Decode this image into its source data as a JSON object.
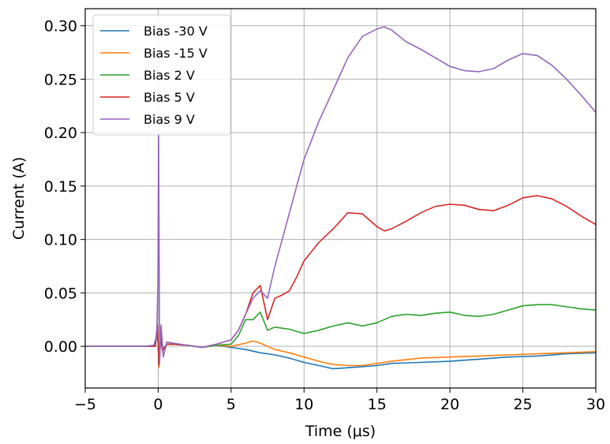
{
  "chart_data": {
    "type": "line",
    "xlabel": "Time (μs)",
    "ylabel": "Current (A)",
    "xlim": [
      -5,
      30
    ],
    "ylim": [
      -0.039,
      0.316
    ],
    "grid": true,
    "legend_position": "top-left",
    "xticks": [
      -5,
      0,
      5,
      10,
      15,
      20,
      25,
      30
    ],
    "xtick_labels": [
      "−5",
      "0",
      "5",
      "10",
      "15",
      "20",
      "25",
      "30"
    ],
    "yticks": [
      0.0,
      0.05,
      0.1,
      0.15,
      0.2,
      0.25,
      0.3
    ],
    "ytick_labels": [
      "0.00",
      "0.05",
      "0.10",
      "0.15",
      "0.20",
      "0.25",
      "0.30"
    ],
    "series": [
      {
        "name": "Bias -30 V",
        "color": "#1f77b4",
        "x": [
          -5,
          -4,
          -3,
          -2,
          -1,
          -0.2,
          -0.05,
          0.05,
          0.15,
          0.3,
          0.6,
          1,
          2,
          3,
          4,
          5,
          6,
          7,
          8,
          9,
          10,
          11,
          12,
          13,
          14,
          15,
          16,
          18,
          20,
          22,
          24,
          26,
          28,
          30
        ],
        "y": [
          0,
          0,
          0,
          0,
          0,
          0,
          0.015,
          -0.015,
          0.008,
          -0.003,
          0.002,
          0.002,
          0.001,
          -0.001,
          0.001,
          -0.001,
          -0.003,
          -0.006,
          -0.008,
          -0.011,
          -0.015,
          -0.018,
          -0.021,
          -0.02,
          -0.019,
          -0.018,
          -0.016,
          -0.015,
          -0.014,
          -0.012,
          -0.01,
          -0.009,
          -0.007,
          -0.006
        ]
      },
      {
        "name": "Bias -15 V",
        "color": "#ff7f0e",
        "x": [
          -5,
          -4,
          -3,
          -2,
          -1,
          -0.2,
          -0.05,
          0.05,
          0.15,
          0.3,
          0.6,
          1,
          2,
          3,
          4,
          5,
          6,
          6.5,
          7,
          8,
          9,
          10,
          11,
          12,
          13,
          14,
          15,
          16,
          18,
          20,
          22,
          24,
          26,
          28,
          30
        ],
        "y": [
          0,
          0,
          0,
          0,
          0,
          0,
          0.02,
          -0.02,
          0.01,
          -0.005,
          0.002,
          0.002,
          0.001,
          -0.001,
          0.001,
          0.0,
          0.003,
          0.005,
          0.003,
          -0.003,
          -0.006,
          -0.01,
          -0.014,
          -0.017,
          -0.018,
          -0.018,
          -0.016,
          -0.014,
          -0.011,
          -0.01,
          -0.009,
          -0.008,
          -0.007,
          -0.006,
          -0.005
        ]
      },
      {
        "name": "Bias 2 V",
        "color": "#2ca02c",
        "x": [
          -5,
          -4,
          -3,
          -2,
          -1,
          -0.2,
          -0.05,
          0.05,
          0.15,
          0.3,
          0.6,
          1,
          2,
          3,
          4,
          5,
          5.5,
          6,
          6.5,
          7,
          7.5,
          8,
          9,
          10,
          11,
          12,
          13,
          14,
          15,
          16,
          17,
          18,
          19,
          20,
          21,
          22,
          23,
          24,
          25,
          26,
          27,
          28,
          29,
          30
        ],
        "y": [
          0,
          0,
          0,
          0,
          0,
          0,
          0.018,
          -0.018,
          0.009,
          -0.004,
          0.002,
          0.002,
          0.001,
          -0.001,
          0.001,
          0.002,
          0.01,
          0.025,
          0.025,
          0.032,
          0.015,
          0.018,
          0.016,
          0.012,
          0.015,
          0.019,
          0.022,
          0.019,
          0.022,
          0.028,
          0.03,
          0.029,
          0.031,
          0.032,
          0.029,
          0.028,
          0.03,
          0.034,
          0.038,
          0.039,
          0.039,
          0.037,
          0.035,
          0.034
        ]
      },
      {
        "name": "Bias 5 V",
        "color": "#d62728",
        "x": [
          -5,
          -4,
          -3,
          -2,
          -1,
          -0.2,
          -0.05,
          0.05,
          0.15,
          0.3,
          0.6,
          1,
          2,
          3,
          4,
          5,
          5.5,
          6,
          6.5,
          7,
          7.5,
          8,
          8.5,
          9,
          9.5,
          10,
          11,
          12,
          13,
          14,
          15,
          15.5,
          16,
          17,
          18,
          19,
          20,
          21,
          22,
          23,
          24,
          25,
          26,
          27,
          28,
          29,
          30
        ],
        "y": [
          0,
          0,
          0,
          0,
          0,
          0,
          0.02,
          -0.018,
          0.01,
          -0.004,
          0.002,
          0.002,
          0.001,
          -0.001,
          0.002,
          0.006,
          0.015,
          0.03,
          0.05,
          0.057,
          0.025,
          0.045,
          0.048,
          0.052,
          0.065,
          0.08,
          0.097,
          0.11,
          0.125,
          0.124,
          0.112,
          0.108,
          0.11,
          0.117,
          0.125,
          0.131,
          0.133,
          0.132,
          0.128,
          0.127,
          0.132,
          0.139,
          0.141,
          0.138,
          0.131,
          0.122,
          0.114
        ]
      },
      {
        "name": "Bias 9 V",
        "color": "#9467bd",
        "x": [
          -5,
          -4,
          -3,
          -2,
          -1,
          -0.3,
          -0.1,
          -0.02,
          0.03,
          0.1,
          0.2,
          0.35,
          0.6,
          1,
          2,
          3,
          4,
          5,
          5.5,
          6,
          6.5,
          7,
          7.5,
          8,
          8.5,
          9,
          9.5,
          10,
          11,
          12,
          13,
          14,
          15,
          15.5,
          16,
          17,
          18,
          19,
          20,
          21,
          22,
          23,
          24,
          25,
          26,
          27,
          28,
          29,
          30
        ],
        "y": [
          0,
          0,
          0,
          0,
          0,
          0.001,
          0.01,
          0.06,
          0.2,
          -0.015,
          0.02,
          -0.01,
          0.004,
          0.003,
          0.001,
          -0.001,
          0.002,
          0.006,
          0.015,
          0.03,
          0.045,
          0.052,
          0.045,
          0.075,
          0.1,
          0.125,
          0.15,
          0.175,
          0.21,
          0.24,
          0.27,
          0.29,
          0.297,
          0.299,
          0.296,
          0.285,
          0.278,
          0.27,
          0.262,
          0.258,
          0.257,
          0.26,
          0.268,
          0.274,
          0.272,
          0.263,
          0.25,
          0.235,
          0.219
        ]
      }
    ]
  }
}
